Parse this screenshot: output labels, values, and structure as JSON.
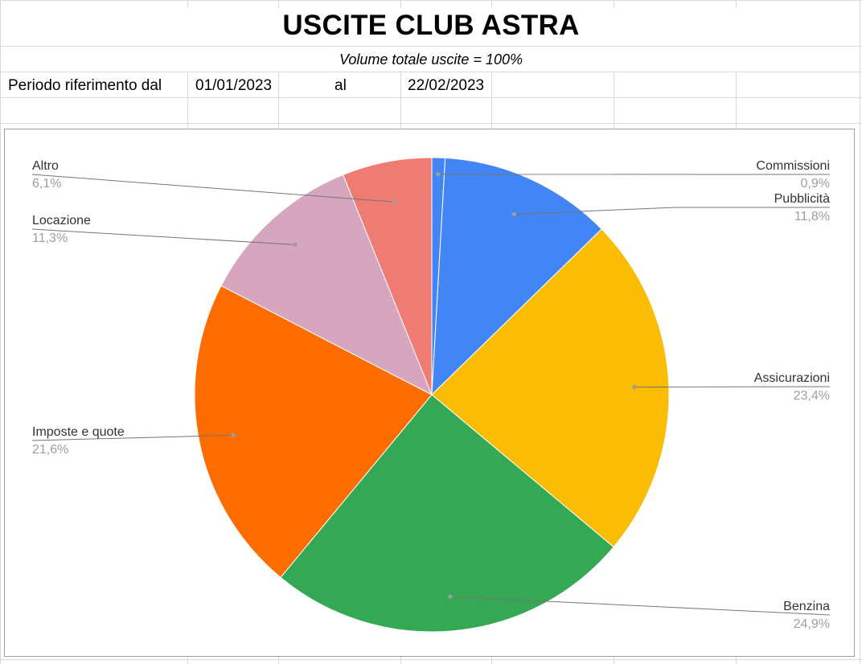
{
  "sheet": {
    "title": "USCITE CLUB ASTRA",
    "subtitle": "Volume totale uscite = 100%",
    "period_label": "Periodo riferimento dal",
    "date_from": "01/01/2023",
    "al_label": "al",
    "date_to": "22/02/2023"
  },
  "chart_data": {
    "type": "pie",
    "title": "",
    "slices": [
      {
        "label": "Commissioni",
        "value": 0.9,
        "display": "0,9%",
        "color": "#4285F4"
      },
      {
        "label": "Pubblicità",
        "value": 11.8,
        "display": "11,8%",
        "color": "#4285F4"
      },
      {
        "label": "Assicurazioni",
        "value": 23.4,
        "display": "23,4%",
        "color": "#FBBC04"
      },
      {
        "label": "Benzina",
        "value": 24.9,
        "display": "24,9%",
        "color": "#34A853"
      },
      {
        "label": "Imposte e quote",
        "value": 21.6,
        "display": "21,6%",
        "color": "#FF6D01"
      },
      {
        "label": "Locazione",
        "value": 11.3,
        "display": "11,3%",
        "color": "#D5A6BD"
      },
      {
        "label": "Altro",
        "value": 6.1,
        "display": "6,1%",
        "color": "#F07B72"
      }
    ],
    "legend": "labeled slices with leader lines"
  }
}
